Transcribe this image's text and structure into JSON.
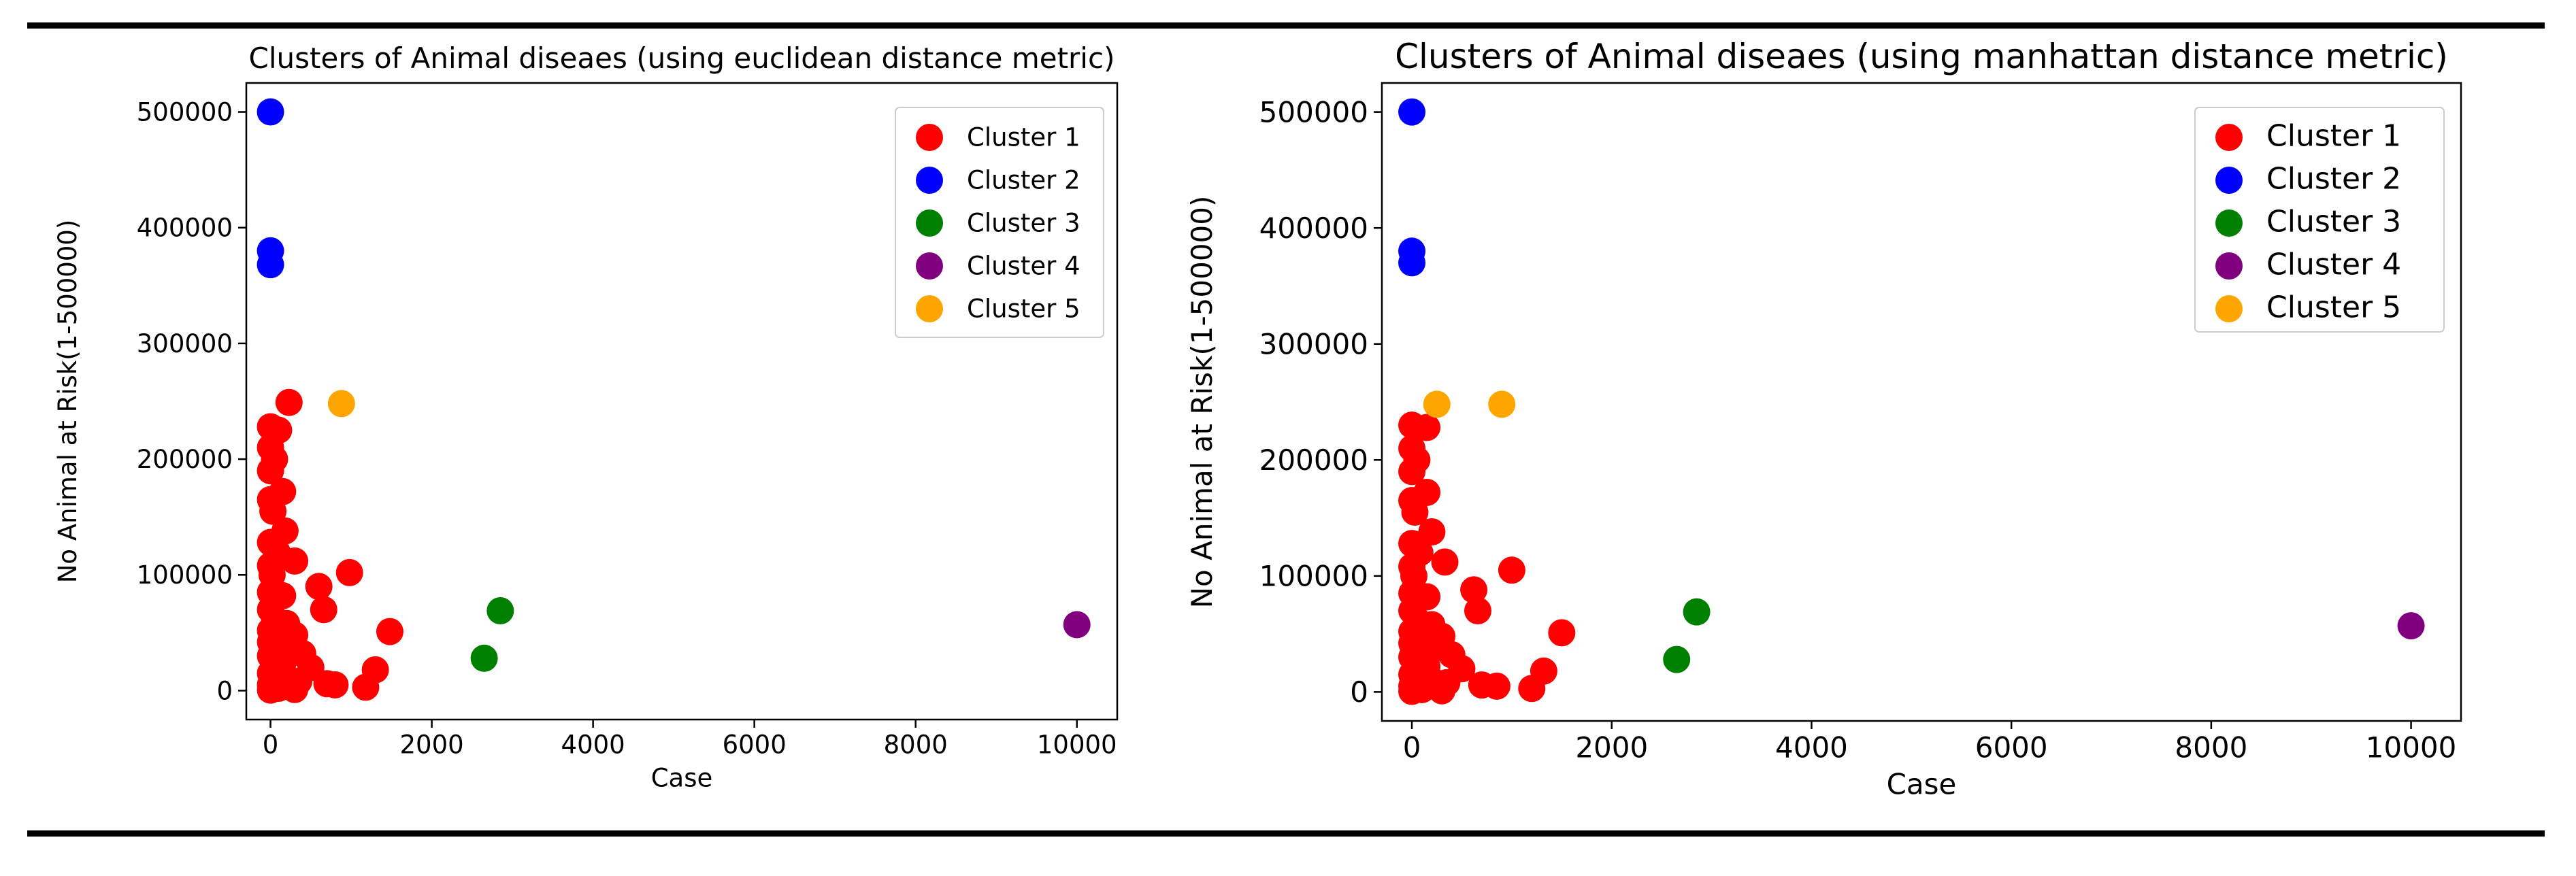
{
  "colors": {
    "cluster1": "#ff0000",
    "cluster2": "#0000ff",
    "cluster3": "#008000",
    "cluster4": "#800080",
    "cluster5": "#ffa500"
  },
  "chart_data": [
    {
      "type": "scatter",
      "title": "Clusters of Animal diseaes (using euclidean distance metric)",
      "xlabel": "Case",
      "ylabel": "No Animal at Risk(1-500000)",
      "xlim": [
        -300,
        10500
      ],
      "ylim": [
        -25000,
        525000
      ],
      "xticks": [
        0,
        2000,
        4000,
        6000,
        8000,
        10000
      ],
      "yticks": [
        0,
        100000,
        200000,
        300000,
        400000,
        500000
      ],
      "legend_position": "top-right",
      "series": [
        {
          "name": "Cluster 1",
          "color": "#ff0000",
          "points": [
            [
              0,
              228000
            ],
            [
              100,
              225000
            ],
            [
              230,
              249000
            ],
            [
              0,
              210000
            ],
            [
              50,
              200000
            ],
            [
              0,
              190000
            ],
            [
              150,
              172000
            ],
            [
              0,
              165000
            ],
            [
              30,
              155000
            ],
            [
              180,
              138000
            ],
            [
              0,
              128000
            ],
            [
              80,
              120000
            ],
            [
              300,
              112000
            ],
            [
              0,
              108000
            ],
            [
              20,
              100000
            ],
            [
              980,
              102000
            ],
            [
              600,
              90000
            ],
            [
              0,
              85000
            ],
            [
              150,
              82000
            ],
            [
              660,
              70000
            ],
            [
              0,
              70000
            ],
            [
              50,
              62000
            ],
            [
              200,
              58000
            ],
            [
              0,
              52000
            ],
            [
              300,
              48000
            ],
            [
              1480,
              51000
            ],
            [
              0,
              42000
            ],
            [
              100,
              40000
            ],
            [
              250,
              38000
            ],
            [
              400,
              32000
            ],
            [
              0,
              30000
            ],
            [
              60,
              25000
            ],
            [
              150,
              22000
            ],
            [
              500,
              20000
            ],
            [
              1300,
              18000
            ],
            [
              0,
              15000
            ],
            [
              80,
              12000
            ],
            [
              200,
              10000
            ],
            [
              350,
              8000
            ],
            [
              700,
              6000
            ],
            [
              800,
              5000
            ],
            [
              0,
              5000
            ],
            [
              1180,
              3000
            ],
            [
              100,
              2000
            ],
            [
              300,
              1000
            ],
            [
              0,
              500
            ]
          ]
        },
        {
          "name": "Cluster 2",
          "color": "#0000ff",
          "points": [
            [
              0,
              500000
            ],
            [
              0,
              380000
            ],
            [
              0,
              368000
            ]
          ]
        },
        {
          "name": "Cluster 3",
          "color": "#008000",
          "points": [
            [
              2650,
              28000
            ],
            [
              2850,
              69000
            ]
          ]
        },
        {
          "name": "Cluster 4",
          "color": "#800080",
          "points": [
            [
              10000,
              57000
            ]
          ]
        },
        {
          "name": "Cluster 5",
          "color": "#ffa500",
          "points": [
            [
              880,
              248000
            ]
          ]
        }
      ]
    },
    {
      "type": "scatter",
      "title": "Clusters of Animal diseaes (using manhattan distance metric)",
      "xlabel": "Case",
      "ylabel": "No Animal at Risk(1-500000)",
      "xlim": [
        -300,
        10500
      ],
      "ylim": [
        -25000,
        525000
      ],
      "xticks": [
        0,
        2000,
        4000,
        6000,
        8000,
        10000
      ],
      "yticks": [
        0,
        100000,
        200000,
        300000,
        400000,
        500000
      ],
      "legend_position": "top-right",
      "series": [
        {
          "name": "Cluster 1",
          "color": "#ff0000",
          "points": [
            [
              0,
              230000
            ],
            [
              150,
              228000
            ],
            [
              0,
              210000
            ],
            [
              50,
              200000
            ],
            [
              0,
              190000
            ],
            [
              150,
              172000
            ],
            [
              0,
              165000
            ],
            [
              30,
              155000
            ],
            [
              200,
              138000
            ],
            [
              0,
              128000
            ],
            [
              80,
              120000
            ],
            [
              330,
              112000
            ],
            [
              0,
              108000
            ],
            [
              20,
              100000
            ],
            [
              1000,
              105000
            ],
            [
              620,
              88000
            ],
            [
              0,
              85000
            ],
            [
              150,
              82000
            ],
            [
              660,
              70000
            ],
            [
              0,
              70000
            ],
            [
              50,
              62000
            ],
            [
              200,
              58000
            ],
            [
              0,
              52000
            ],
            [
              300,
              48000
            ],
            [
              1500,
              51000
            ],
            [
              0,
              42000
            ],
            [
              100,
              40000
            ],
            [
              250,
              38000
            ],
            [
              400,
              32000
            ],
            [
              0,
              30000
            ],
            [
              60,
              25000
            ],
            [
              150,
              22000
            ],
            [
              500,
              20000
            ],
            [
              1320,
              18000
            ],
            [
              0,
              15000
            ],
            [
              80,
              12000
            ],
            [
              200,
              10000
            ],
            [
              350,
              8000
            ],
            [
              700,
              6000
            ],
            [
              850,
              5000
            ],
            [
              0,
              5000
            ],
            [
              1200,
              3000
            ],
            [
              100,
              2000
            ],
            [
              300,
              1000
            ],
            [
              0,
              500
            ]
          ]
        },
        {
          "name": "Cluster 2",
          "color": "#0000ff",
          "points": [
            [
              0,
              500000
            ],
            [
              0,
              380000
            ],
            [
              0,
              370000
            ]
          ]
        },
        {
          "name": "Cluster 3",
          "color": "#008000",
          "points": [
            [
              2650,
              28000
            ],
            [
              2850,
              69000
            ]
          ]
        },
        {
          "name": "Cluster 4",
          "color": "#800080",
          "points": [
            [
              10000,
              57000
            ]
          ]
        },
        {
          "name": "Cluster 5",
          "color": "#ffa500",
          "points": [
            [
              250,
              248000
            ],
            [
              900,
              248000
            ]
          ]
        }
      ]
    }
  ]
}
